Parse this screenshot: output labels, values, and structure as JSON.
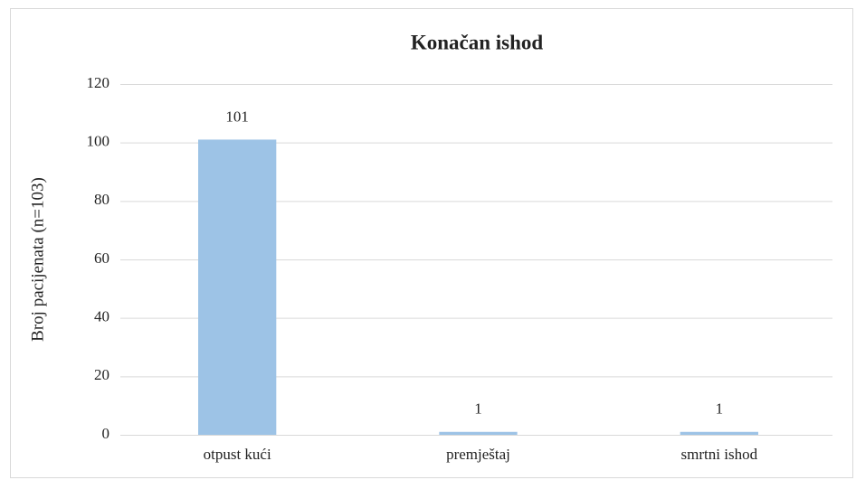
{
  "chart_data": {
    "type": "bar",
    "title": "Konačan ishod",
    "y_label": "Broj pacijenata (n=103)",
    "categories": [
      "otpust kući",
      "premještaj",
      "smrtni ishod"
    ],
    "values": [
      101,
      1,
      1
    ],
    "color": "#9dc3e6",
    "ylim": [
      0,
      120
    ],
    "yticks": [
      0,
      20,
      40,
      60,
      80,
      100,
      120
    ],
    "grid": true,
    "data_labels": true
  }
}
